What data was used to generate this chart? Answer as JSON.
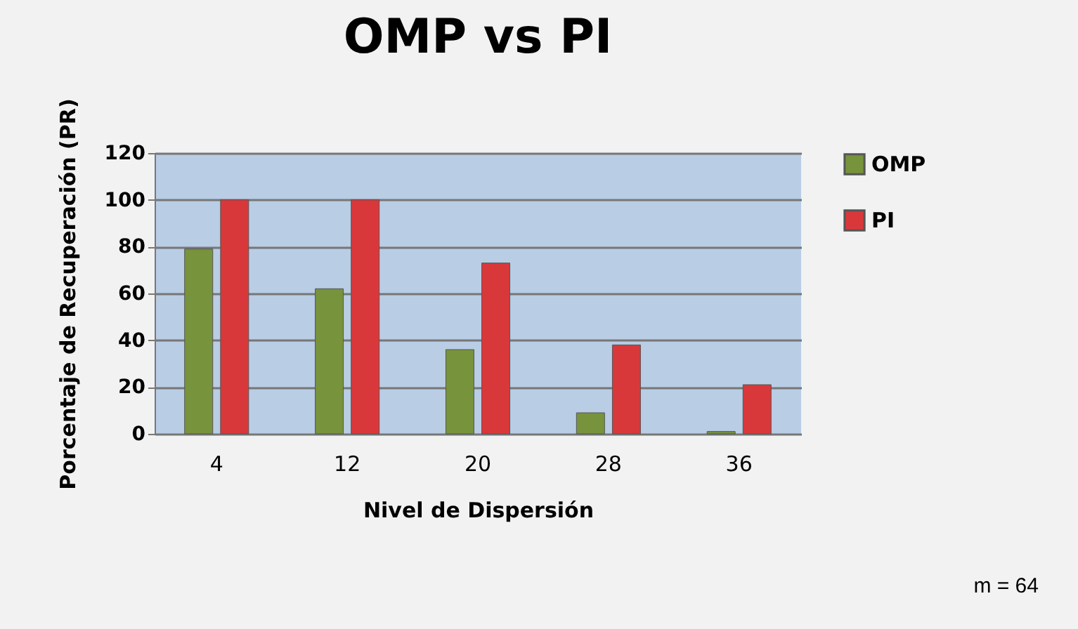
{
  "chart_data": {
    "type": "bar",
    "title": "OMP vs PI",
    "xlabel": "Nivel de Dispersión",
    "ylabel": "Porcentaje de Recuperación (PR)",
    "categories": [
      "4",
      "12",
      "20",
      "28",
      "36"
    ],
    "series": [
      {
        "name": "OMP",
        "color": "#77933c",
        "values": [
          79,
          62,
          36,
          9,
          1
        ]
      },
      {
        "name": "PI",
        "color": "#d9383a",
        "values": [
          100,
          100,
          73,
          38,
          21
        ]
      }
    ],
    "ylim": [
      0,
      120
    ],
    "yticks": [
      0,
      20,
      40,
      60,
      80,
      100,
      120
    ],
    "grid": "y",
    "legend": "right",
    "annotations": [
      "m = 64"
    ]
  }
}
